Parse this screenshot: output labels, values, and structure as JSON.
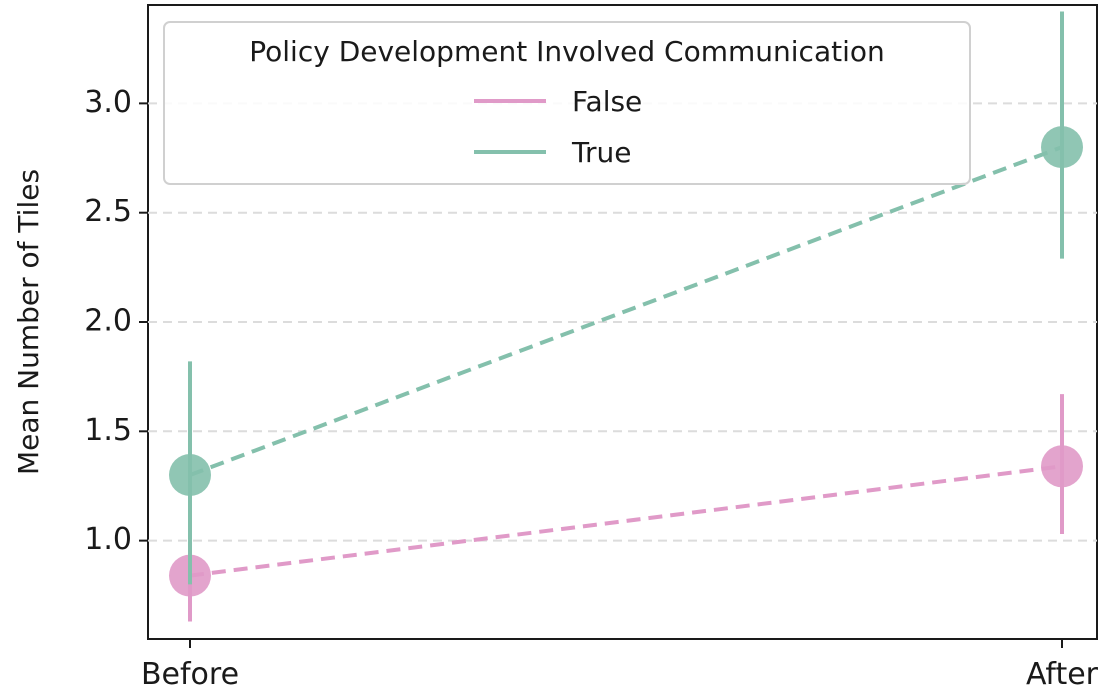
{
  "chart_data": {
    "type": "line",
    "categories": [
      "Before",
      "After"
    ],
    "ylabel": "Mean Number of Tiles",
    "xlabel": "",
    "ylim": [
      0.55,
      3.45
    ],
    "yticks": [
      "1.0",
      "1.5",
      "2.0",
      "2.5",
      "3.0"
    ],
    "ytick_values": [
      1.0,
      1.5,
      2.0,
      2.5,
      3.0
    ],
    "grid": "horizontal dashed",
    "legend": {
      "title": "Policy Development Involved Communication",
      "placement": "top-left"
    },
    "series": [
      {
        "name": "False",
        "color": "#e09ac8",
        "values": [
          0.84,
          1.34
        ],
        "err_low": [
          0.63,
          1.03
        ],
        "err_high": [
          1.04,
          1.67
        ]
      },
      {
        "name": "True",
        "color": "#84c0ac",
        "values": [
          1.3,
          2.8
        ],
        "err_low": [
          0.8,
          2.29
        ],
        "err_high": [
          1.82,
          3.42
        ]
      }
    ]
  }
}
